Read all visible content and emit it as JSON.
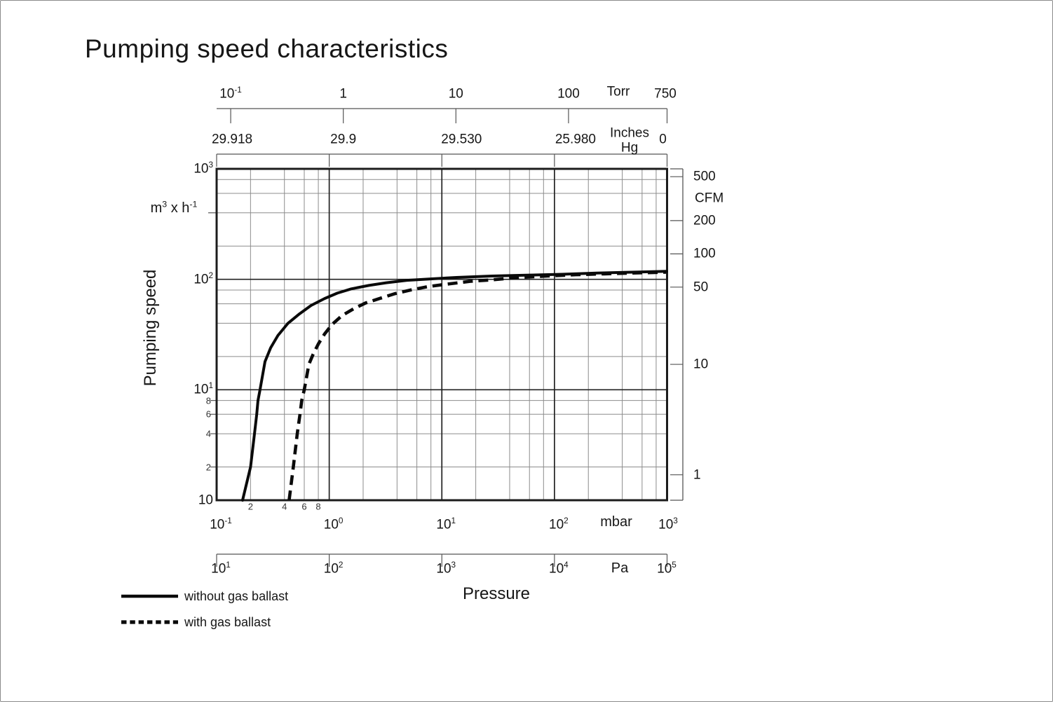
{
  "title": "Pumping speed characteristics",
  "colors": {
    "ink": "#1a1a1a",
    "grid_minor": "#8c8c8c",
    "grid_major": "#222222",
    "frame": "#1c1c1c",
    "axis_line": "#555555",
    "curve": "#0a0a0a"
  },
  "torr_axis": {
    "unit": "Torr",
    "ticks": [
      {
        "t": "10",
        "e": "-1",
        "v": 0.1
      },
      {
        "t": "1",
        "v": 1
      },
      {
        "t": "10",
        "v": 10
      },
      {
        "t": "100",
        "v": 100
      },
      {
        "t": "750",
        "v": 750
      }
    ]
  },
  "hg_axis": {
    "unit_line1": "Inches",
    "unit_line2": "Hg",
    "labels": [
      {
        "t": "29.918",
        "v": 0.1,
        "dx": 2
      },
      {
        "t": "29.9",
        "v": 1,
        "dx": 0
      },
      {
        "t": "29.530",
        "v": 10,
        "dx": 8
      },
      {
        "t": "25.980",
        "v": 100,
        "dx": 10
      },
      {
        "t": "0",
        "v": 750,
        "dx": -6
      }
    ]
  },
  "y_axis": {
    "label": "Pumping speed",
    "unit_parts": {
      "b1": "m",
      "s1": "3",
      "b2": " x h",
      "s2": "-1"
    },
    "majors": [
      {
        "t": "10",
        "e": "3",
        "v": 1000
      },
      {
        "t": "10",
        "e": "2",
        "v": 100
      },
      {
        "t": "10",
        "e": "1",
        "v": 10
      },
      {
        "t": "10",
        "v": 1
      }
    ],
    "minor_labels": [
      {
        "t": "8",
        "v": 8
      },
      {
        "t": "6",
        "v": 6
      },
      {
        "t": "4",
        "v": 4
      },
      {
        "t": "2",
        "v": 2
      }
    ]
  },
  "mbar_axis": {
    "unit": "mbar",
    "ticks": [
      {
        "t": "10",
        "e": "-1",
        "d": 0
      },
      {
        "t": "10",
        "e": "0",
        "d": 1
      },
      {
        "t": "10",
        "e": "1",
        "d": 2
      },
      {
        "t": "10",
        "e": "2",
        "d": 3
      },
      {
        "t": "10",
        "e": "3",
        "d": 4
      }
    ],
    "minor_labels": [
      {
        "t": "2",
        "v": 0.2
      },
      {
        "t": "4",
        "v": 0.4
      },
      {
        "t": "6",
        "v": 0.6
      },
      {
        "t": "8",
        "v": 0.8
      }
    ]
  },
  "pa_axis": {
    "unit": "Pa",
    "ticks": [
      {
        "t": "10",
        "e": "1",
        "d": 0
      },
      {
        "t": "10",
        "e": "2",
        "d": 1
      },
      {
        "t": "10",
        "e": "3",
        "d": 2
      },
      {
        "t": "10",
        "e": "4",
        "d": 3
      },
      {
        "t": "10",
        "e": "5",
        "d": 4
      }
    ]
  },
  "cfm_axis": {
    "unit": "CFM",
    "ticks": [
      {
        "t": "500",
        "v": 500
      },
      {
        "t": "200",
        "v": 200
      },
      {
        "t": "100",
        "v": 100
      },
      {
        "t": "50",
        "v": 50
      },
      {
        "t": "10",
        "v": 10
      },
      {
        "t": "1",
        "v": 1
      }
    ]
  },
  "x_label": "Pressure",
  "legend": [
    {
      "style": "solid",
      "label": "without gas ballast"
    },
    {
      "style": "dashed",
      "label": "with gas ballast"
    }
  ],
  "chart_data": {
    "type": "line",
    "title": "Pumping speed characteristics",
    "xlabel": "Pressure",
    "x_units": [
      "mbar",
      "Pa",
      "Torr",
      "Inches Hg"
    ],
    "ylabel": "Pumping speed",
    "y_unit": "m3 x h-1",
    "y2_unit": "CFM",
    "scale": "log-log",
    "grid": true,
    "x_range_mbar": [
      0.1,
      1000
    ],
    "y_range_m3h": [
      1,
      1000
    ],
    "cfm_tick_values": [
      500,
      200,
      100,
      50,
      10,
      1
    ],
    "torr_tick_values": [
      0.1,
      1,
      10,
      100,
      750
    ],
    "inches_hg_tick_values": [
      29.918,
      29.9,
      29.53,
      25.98,
      0
    ],
    "pa_tick_values": [
      10,
      100,
      1000,
      10000,
      100000
    ],
    "series": [
      {
        "name": "without gas ballast",
        "style": "solid",
        "points_mbar_m3h": [
          [
            0.17,
            1
          ],
          [
            0.2,
            2
          ],
          [
            0.217,
            4
          ],
          [
            0.227,
            6
          ],
          [
            0.233,
            8
          ],
          [
            0.243,
            10
          ],
          [
            0.269,
            18
          ],
          [
            0.302,
            24
          ],
          [
            0.35,
            31
          ],
          [
            0.43,
            40
          ],
          [
            0.535,
            48
          ],
          [
            0.69,
            58
          ],
          [
            0.91,
            67
          ],
          [
            1.18,
            75
          ],
          [
            1.57,
            82
          ],
          [
            2.25,
            88
          ],
          [
            3.2,
            93
          ],
          [
            4.9,
            98
          ],
          [
            8.2,
            101
          ],
          [
            13.5,
            104
          ],
          [
            27.7,
            107
          ],
          [
            56.6,
            109
          ],
          [
            116,
            111
          ],
          [
            237,
            114
          ],
          [
            484,
            116
          ],
          [
            990,
            118
          ]
        ]
      },
      {
        "name": "with gas ballast",
        "style": "dashed",
        "points_mbar_m3h": [
          [
            0.44,
            1
          ],
          [
            0.48,
            2
          ],
          [
            0.52,
            4
          ],
          [
            0.55,
            6
          ],
          [
            0.57,
            8
          ],
          [
            0.6,
            10
          ],
          [
            0.66,
            17
          ],
          [
            0.72,
            21
          ],
          [
            0.8,
            26
          ],
          [
            0.91,
            32
          ],
          [
            1.06,
            39
          ],
          [
            1.3,
            47
          ],
          [
            1.64,
            54
          ],
          [
            2.1,
            61
          ],
          [
            2.8,
            67
          ],
          [
            3.8,
            74
          ],
          [
            5.3,
            80
          ],
          [
            7.6,
            86
          ],
          [
            11.7,
            91
          ],
          [
            18,
            96
          ],
          [
            28,
            99
          ],
          [
            49,
            104
          ],
          [
            87,
            107
          ],
          [
            155,
            110
          ],
          [
            276,
            112
          ],
          [
            489,
            114
          ],
          [
            985,
            116
          ]
        ]
      }
    ]
  }
}
